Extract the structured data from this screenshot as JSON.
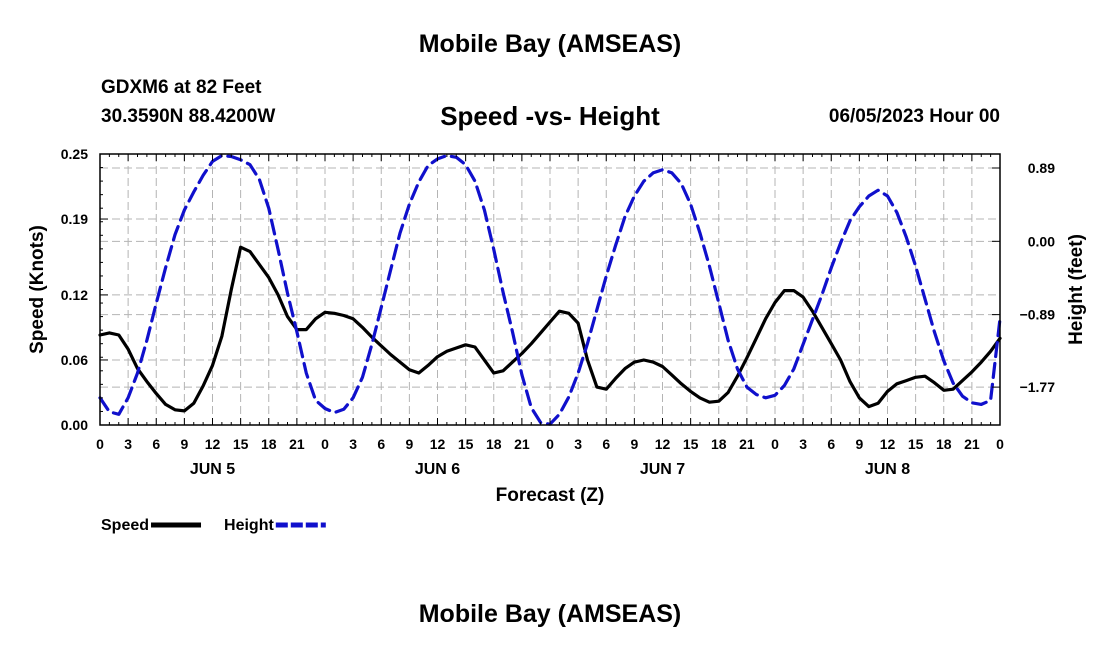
{
  "header": {
    "title": "Mobile Bay (AMSEAS)",
    "station": "GDXM6 at 82 Feet",
    "coords": "30.3590N  88.4200W",
    "date": "06/05/2023 Hour 00"
  },
  "footer": {
    "title": "Mobile Bay (AMSEAS)"
  },
  "chart_data": {
    "type": "line",
    "title": "Speed -vs- Height",
    "xlabel": "Forecast (Z)",
    "ylabel": "Speed (Knots)",
    "y2label": "Height (feet)",
    "xlim": [
      0,
      96
    ],
    "ylim": [
      0,
      0.25
    ],
    "y2lim": [
      -2.23,
      1.06
    ],
    "x_ticks": [
      0,
      3,
      6,
      9,
      12,
      15,
      18,
      21,
      24,
      27,
      30,
      33,
      36,
      39,
      42,
      45,
      48,
      51,
      54,
      57,
      60,
      63,
      66,
      69,
      72,
      75,
      78,
      81,
      84,
      87,
      90,
      93,
      96
    ],
    "x_tick_labels": [
      "0",
      "3",
      "6",
      "9",
      "12",
      "15",
      "18",
      "21",
      "0",
      "3",
      "6",
      "9",
      "12",
      "15",
      "18",
      "21",
      "0",
      "3",
      "6",
      "9",
      "12",
      "15",
      "18",
      "21",
      "0",
      "3",
      "6",
      "9",
      "12",
      "15",
      "18",
      "21",
      "0"
    ],
    "day_labels": [
      {
        "x": 12,
        "label": "JUN 5"
      },
      {
        "x": 36,
        "label": "JUN 6"
      },
      {
        "x": 60,
        "label": "JUN 7"
      },
      {
        "x": 84,
        "label": "JUN 8"
      }
    ],
    "y_ticks": [
      0,
      0.06,
      0.12,
      0.19,
      0.25
    ],
    "y_tick_labels": [
      "0.00",
      "0.06",
      "0.12",
      "0.19",
      "0.25"
    ],
    "y2_ticks": [
      0.89,
      0.0,
      -0.89,
      -1.77
    ],
    "y2_tick_labels": [
      "0.89",
      "0.00",
      "−0.89",
      "−1.77"
    ],
    "grid": true,
    "legend_position": "bottom-left",
    "series": [
      {
        "name": "Speed",
        "axis": "left",
        "color": "#000000",
        "style": "solid",
        "points": [
          [
            0,
            0.083
          ],
          [
            1,
            0.085
          ],
          [
            2,
            0.083
          ],
          [
            3,
            0.07
          ],
          [
            4,
            0.052
          ],
          [
            5,
            0.04
          ],
          [
            6,
            0.029
          ],
          [
            7,
            0.019
          ],
          [
            8,
            0.014
          ],
          [
            9,
            0.013
          ],
          [
            10,
            0.02
          ],
          [
            11,
            0.036
          ],
          [
            12,
            0.055
          ],
          [
            13,
            0.082
          ],
          [
            14,
            0.125
          ],
          [
            15,
            0.164
          ],
          [
            16,
            0.16
          ],
          [
            17,
            0.148
          ],
          [
            18,
            0.136
          ],
          [
            19,
            0.12
          ],
          [
            20,
            0.1
          ],
          [
            21,
            0.088
          ],
          [
            22,
            0.088
          ],
          [
            23,
            0.098
          ],
          [
            24,
            0.104
          ],
          [
            25,
            0.103
          ],
          [
            26,
            0.101
          ],
          [
            27,
            0.098
          ],
          [
            28,
            0.09
          ],
          [
            29,
            0.081
          ],
          [
            30,
            0.073
          ],
          [
            31,
            0.065
          ],
          [
            32,
            0.058
          ],
          [
            33,
            0.051
          ],
          [
            34,
            0.048
          ],
          [
            35,
            0.055
          ],
          [
            36,
            0.063
          ],
          [
            37,
            0.068
          ],
          [
            38,
            0.071
          ],
          [
            39,
            0.074
          ],
          [
            40,
            0.072
          ],
          [
            41,
            0.06
          ],
          [
            42,
            0.048
          ],
          [
            43,
            0.05
          ],
          [
            44,
            0.058
          ],
          [
            45,
            0.066
          ],
          [
            46,
            0.075
          ],
          [
            47,
            0.085
          ],
          [
            48,
            0.095
          ],
          [
            49,
            0.105
          ],
          [
            50,
            0.103
          ],
          [
            51,
            0.094
          ],
          [
            52,
            0.06
          ],
          [
            53,
            0.035
          ],
          [
            54,
            0.033
          ],
          [
            55,
            0.043
          ],
          [
            56,
            0.052
          ],
          [
            57,
            0.058
          ],
          [
            58,
            0.06
          ],
          [
            59,
            0.058
          ],
          [
            60,
            0.054
          ],
          [
            61,
            0.046
          ],
          [
            62,
            0.038
          ],
          [
            63,
            0.031
          ],
          [
            64,
            0.025
          ],
          [
            65,
            0.021
          ],
          [
            66,
            0.022
          ],
          [
            67,
            0.03
          ],
          [
            68,
            0.045
          ],
          [
            69,
            0.062
          ],
          [
            70,
            0.08
          ],
          [
            71,
            0.098
          ],
          [
            72,
            0.113
          ],
          [
            73,
            0.124
          ],
          [
            74,
            0.124
          ],
          [
            75,
            0.118
          ],
          [
            76,
            0.105
          ],
          [
            77,
            0.09
          ],
          [
            78,
            0.075
          ],
          [
            79,
            0.06
          ],
          [
            80,
            0.04
          ],
          [
            81,
            0.025
          ],
          [
            82,
            0.017
          ],
          [
            83,
            0.02
          ],
          [
            84,
            0.031
          ],
          [
            85,
            0.038
          ],
          [
            86,
            0.041
          ],
          [
            87,
            0.044
          ],
          [
            88,
            0.045
          ],
          [
            89,
            0.039
          ],
          [
            90,
            0.032
          ],
          [
            91,
            0.033
          ],
          [
            92,
            0.041
          ],
          [
            93,
            0.049
          ],
          [
            94,
            0.058
          ],
          [
            95,
            0.068
          ],
          [
            96,
            0.08
          ]
        ]
      },
      {
        "name": "Height",
        "axis": "right",
        "color": "#1010cc",
        "style": "dashed",
        "points": [
          [
            0,
            -1.9
          ],
          [
            1,
            -2.07
          ],
          [
            2,
            -2.1
          ],
          [
            3,
            -1.9
          ],
          [
            4,
            -1.6
          ],
          [
            5,
            -1.2
          ],
          [
            6,
            -0.75
          ],
          [
            7,
            -0.32
          ],
          [
            8,
            0.08
          ],
          [
            9,
            0.38
          ],
          [
            10,
            0.6
          ],
          [
            11,
            0.8
          ],
          [
            12,
            0.97
          ],
          [
            13,
            1.04
          ],
          [
            14,
            1.03
          ],
          [
            15,
            0.99
          ],
          [
            16,
            0.93
          ],
          [
            17,
            0.75
          ],
          [
            18,
            0.4
          ],
          [
            19,
            -0.1
          ],
          [
            20,
            -0.63
          ],
          [
            21,
            -1.1
          ],
          [
            22,
            -1.6
          ],
          [
            23,
            -1.93
          ],
          [
            24,
            -2.03
          ],
          [
            25,
            -2.08
          ],
          [
            26,
            -2.04
          ],
          [
            27,
            -1.9
          ],
          [
            28,
            -1.65
          ],
          [
            29,
            -1.25
          ],
          [
            30,
            -0.8
          ],
          [
            31,
            -0.35
          ],
          [
            32,
            0.1
          ],
          [
            33,
            0.45
          ],
          [
            34,
            0.72
          ],
          [
            35,
            0.92
          ],
          [
            36,
            1.0
          ],
          [
            37,
            1.04
          ],
          [
            38,
            1.02
          ],
          [
            39,
            0.93
          ],
          [
            40,
            0.73
          ],
          [
            41,
            0.38
          ],
          [
            42,
            -0.1
          ],
          [
            43,
            -0.62
          ],
          [
            44,
            -1.1
          ],
          [
            45,
            -1.62
          ],
          [
            46,
            -2.02
          ],
          [
            47,
            -2.2
          ],
          [
            48,
            -2.22
          ],
          [
            49,
            -2.1
          ],
          [
            50,
            -1.89
          ],
          [
            51,
            -1.6
          ],
          [
            52,
            -1.24
          ],
          [
            53,
            -0.83
          ],
          [
            54,
            -0.42
          ],
          [
            55,
            -0.05
          ],
          [
            56,
            0.3
          ],
          [
            57,
            0.55
          ],
          [
            58,
            0.73
          ],
          [
            59,
            0.83
          ],
          [
            60,
            0.87
          ],
          [
            61,
            0.83
          ],
          [
            62,
            0.7
          ],
          [
            63,
            0.45
          ],
          [
            64,
            0.1
          ],
          [
            65,
            -0.3
          ],
          [
            66,
            -0.75
          ],
          [
            67,
            -1.2
          ],
          [
            68,
            -1.55
          ],
          [
            69,
            -1.77
          ],
          [
            70,
            -1.86
          ],
          [
            71,
            -1.9
          ],
          [
            72,
            -1.87
          ],
          [
            73,
            -1.75
          ],
          [
            74,
            -1.55
          ],
          [
            75,
            -1.25
          ],
          [
            76,
            -0.95
          ],
          [
            77,
            -0.65
          ],
          [
            78,
            -0.32
          ],
          [
            79,
            -0.02
          ],
          [
            80,
            0.25
          ],
          [
            81,
            0.42
          ],
          [
            82,
            0.55
          ],
          [
            83,
            0.62
          ],
          [
            84,
            0.55
          ],
          [
            85,
            0.35
          ],
          [
            86,
            0.05
          ],
          [
            87,
            -0.3
          ],
          [
            88,
            -0.7
          ],
          [
            89,
            -1.1
          ],
          [
            90,
            -1.45
          ],
          [
            91,
            -1.72
          ],
          [
            92,
            -1.88
          ],
          [
            93,
            -1.96
          ],
          [
            94,
            -1.98
          ],
          [
            95,
            -1.93
          ],
          [
            96,
            -0.94
          ]
        ]
      }
    ]
  }
}
